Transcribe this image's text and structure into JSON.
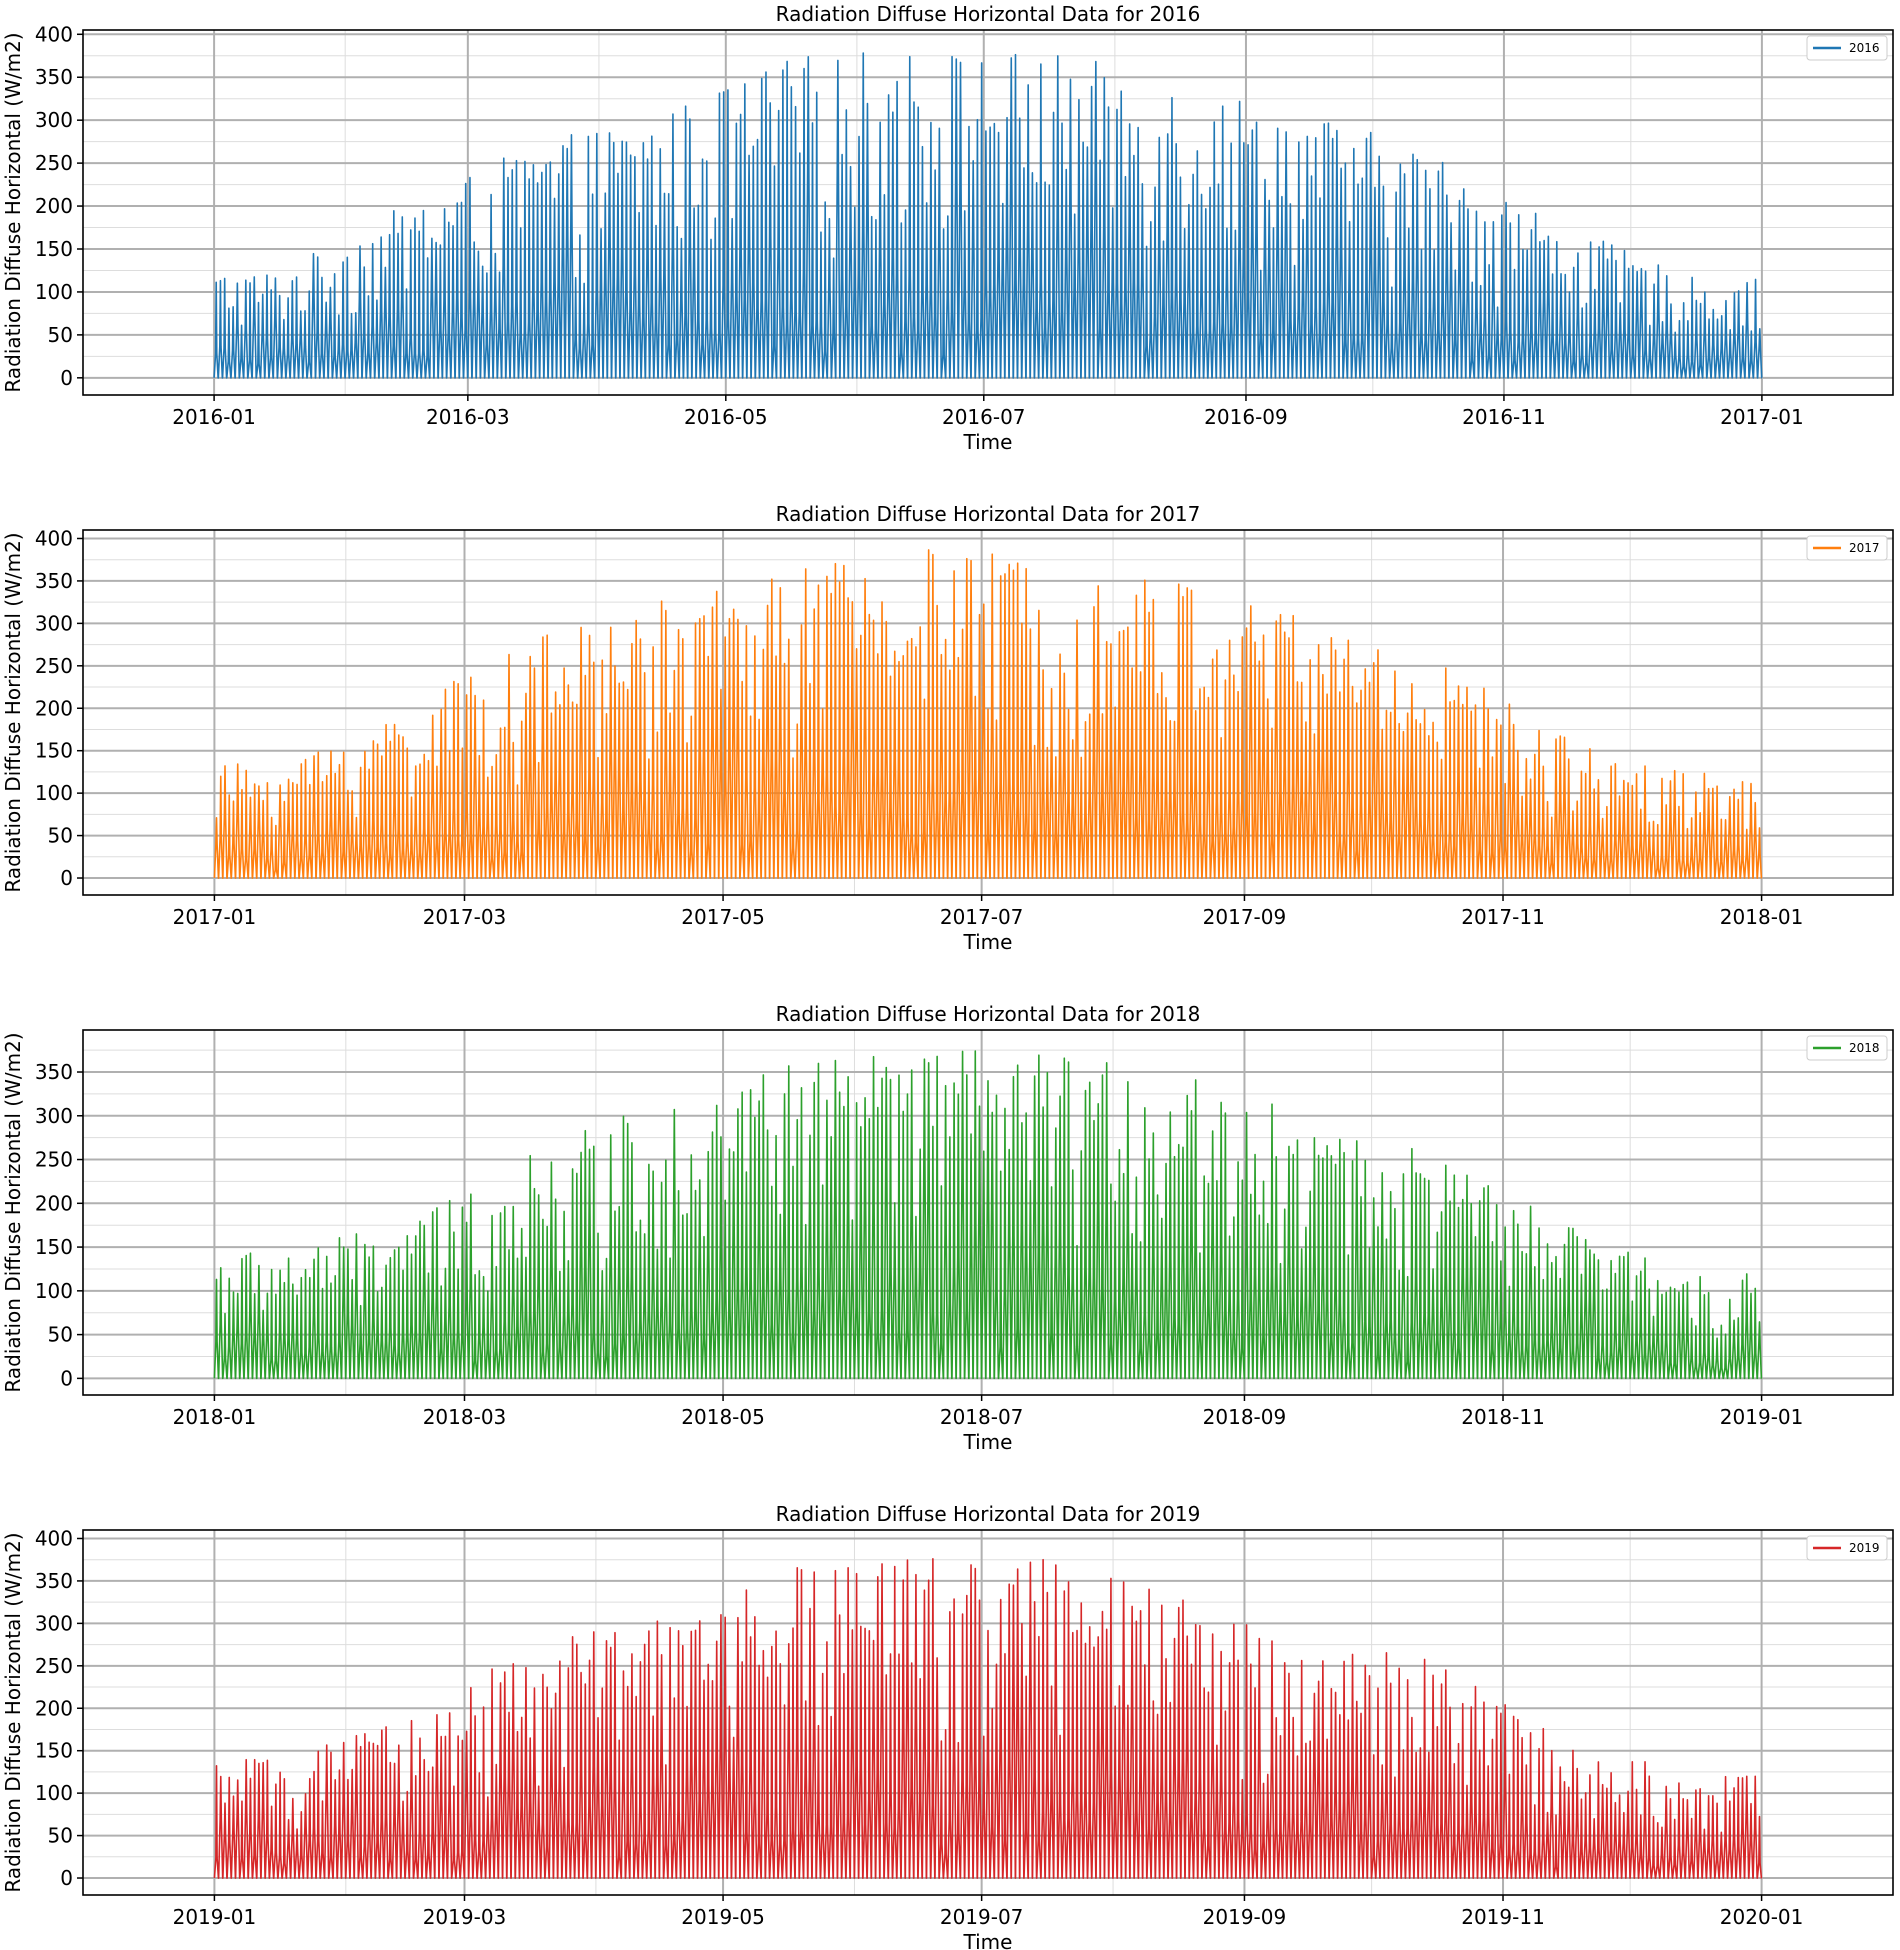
{
  "chart_data": [
    {
      "type": "line",
      "title": "Radiation Diffuse Horizontal Data for 2016",
      "xlabel": "Time",
      "ylabel": "Radiation Diffuse Horizontal (W/m2)",
      "legend_position": "top-right",
      "grid": true,
      "color": "#1f77b4",
      "xlim": [
        "2015-12-01",
        "2017-02-01"
      ],
      "ylim": [
        -20,
        405
      ],
      "x_tick_labels": [
        "2016-01",
        "2016-03",
        "2016-05",
        "2016-07",
        "2016-09",
        "2016-11",
        "2017-01"
      ],
      "x_tick_dates": [
        "2016-01-01",
        "2016-03-01",
        "2016-05-01",
        "2016-07-01",
        "2016-09-01",
        "2016-11-01",
        "2017-01-01"
      ],
      "y_ticks": [
        0,
        50,
        100,
        150,
        200,
        250,
        300,
        350,
        400
      ],
      "series": [
        {
          "name": "2016",
          "resolution": "hourly; daily peak values shown",
          "x_start": "2016-01-01",
          "x_end": "2016-12-31",
          "min_value": 0,
          "max_value": 385,
          "monthly_peak": [
            {
              "month": "2016-01",
              "peak": 125
            },
            {
              "month": "2016-02",
              "peak": 205
            },
            {
              "month": "2016-03",
              "peak": 272
            },
            {
              "month": "2016-04",
              "peak": 310
            },
            {
              "month": "2016-05",
              "peak": 375
            },
            {
              "month": "2016-06",
              "peak": 385
            },
            {
              "month": "2016-07",
              "peak": 380
            },
            {
              "month": "2016-08",
              "peak": 347
            },
            {
              "month": "2016-09",
              "peak": 310
            },
            {
              "month": "2016-10",
              "peak": 260
            },
            {
              "month": "2016-11",
              "peak": 175
            },
            {
              "month": "2016-12",
              "peak": 115
            }
          ]
        }
      ]
    },
    {
      "type": "line",
      "title": "Radiation Diffuse Horizontal Data for 2017",
      "xlabel": "Time",
      "ylabel": "Radiation Diffuse Horizontal (W/m2)",
      "legend_position": "top-right",
      "grid": true,
      "color": "#ff7f0e",
      "xlim": [
        "2016-12-01",
        "2018-02-01"
      ],
      "ylim": [
        -20,
        410
      ],
      "x_tick_labels": [
        "2017-01",
        "2017-03",
        "2017-05",
        "2017-07",
        "2017-09",
        "2017-11",
        "2018-01"
      ],
      "x_tick_dates": [
        "2017-01-01",
        "2017-03-01",
        "2017-05-01",
        "2017-07-01",
        "2017-09-01",
        "2017-11-01",
        "2018-01-01"
      ],
      "y_ticks": [
        0,
        50,
        100,
        150,
        200,
        250,
        300,
        350,
        400
      ],
      "series": [
        {
          "name": "2017",
          "resolution": "hourly; daily peak values shown",
          "x_start": "2017-01-01",
          "x_end": "2017-12-31",
          "min_value": 0,
          "max_value": 390,
          "monthly_peak": [
            {
              "month": "2017-01",
              "peak": 135
            },
            {
              "month": "2017-02",
              "peak": 205
            },
            {
              "month": "2017-03",
              "peak": 280
            },
            {
              "month": "2017-04",
              "peak": 328
            },
            {
              "month": "2017-05",
              "peak": 365
            },
            {
              "month": "2017-06",
              "peak": 390
            },
            {
              "month": "2017-07",
              "peak": 378
            },
            {
              "month": "2017-08",
              "peak": 352
            },
            {
              "month": "2017-09",
              "peak": 315
            },
            {
              "month": "2017-10",
              "peak": 260
            },
            {
              "month": "2017-11",
              "peak": 165
            },
            {
              "month": "2017-12",
              "peak": 125
            }
          ]
        }
      ]
    },
    {
      "type": "line",
      "title": "Radiation Diffuse Horizontal Data for 2018",
      "xlabel": "Time",
      "ylabel": "Radiation Diffuse Horizontal (W/m2)",
      "legend_position": "top-right",
      "grid": true,
      "color": "#2ca02c",
      "xlim": [
        "2017-12-01",
        "2019-02-01"
      ],
      "ylim": [
        -19,
        398
      ],
      "x_tick_labels": [
        "2018-01",
        "2018-03",
        "2018-05",
        "2018-07",
        "2018-09",
        "2018-11",
        "2019-01"
      ],
      "x_tick_dates": [
        "2018-01-01",
        "2018-03-01",
        "2018-05-01",
        "2018-07-01",
        "2018-09-01",
        "2018-11-01",
        "2019-01-01"
      ],
      "y_ticks": [
        0,
        50,
        100,
        150,
        200,
        250,
        300,
        350
      ],
      "series": [
        {
          "name": "2018",
          "resolution": "hourly; daily peak values shown",
          "x_start": "2018-01-01",
          "x_end": "2018-12-31",
          "min_value": 0,
          "max_value": 380,
          "monthly_peak": [
            {
              "month": "2018-01",
              "peak": 145
            },
            {
              "month": "2018-02",
              "peak": 180
            },
            {
              "month": "2018-03",
              "peak": 255
            },
            {
              "month": "2018-04",
              "peak": 322
            },
            {
              "month": "2018-05",
              "peak": 365
            },
            {
              "month": "2018-06",
              "peak": 380
            },
            {
              "month": "2018-07",
              "peak": 370
            },
            {
              "month": "2018-08",
              "peak": 352
            },
            {
              "month": "2018-09",
              "peak": 300
            },
            {
              "month": "2018-10",
              "peak": 255
            },
            {
              "month": "2018-11",
              "peak": 175
            },
            {
              "month": "2018-12",
              "peak": 120
            }
          ]
        }
      ]
    },
    {
      "type": "line",
      "title": "Radiation Diffuse Horizontal Data for 2019",
      "xlabel": "Time",
      "ylabel": "Radiation Diffuse Horizontal (W/m2)",
      "legend_position": "top-right",
      "grid": true,
      "color": "#d62728",
      "xlim": [
        "2018-12-01",
        "2020-02-01"
      ],
      "ylim": [
        -20,
        410
      ],
      "x_tick_labels": [
        "2019-01",
        "2019-03",
        "2019-05",
        "2019-07",
        "2019-09",
        "2019-11",
        "2020-01"
      ],
      "x_tick_dates": [
        "2019-01-01",
        "2019-03-01",
        "2019-05-01",
        "2019-07-01",
        "2019-09-01",
        "2019-11-01",
        "2020-01-01"
      ],
      "y_ticks": [
        0,
        50,
        100,
        150,
        200,
        250,
        300,
        350,
        400
      ],
      "series": [
        {
          "name": "2019",
          "resolution": "hourly; daily peak values shown",
          "x_start": "2019-01-01",
          "x_end": "2019-12-31",
          "min_value": 0,
          "max_value": 388,
          "monthly_peak": [
            {
              "month": "2019-01",
              "peak": 140
            },
            {
              "month": "2019-02",
              "peak": 190
            },
            {
              "month": "2019-03",
              "peak": 277
            },
            {
              "month": "2019-04",
              "peak": 305
            },
            {
              "month": "2019-05",
              "peak": 365
            },
            {
              "month": "2019-06",
              "peak": 388
            },
            {
              "month": "2019-07",
              "peak": 383
            },
            {
              "month": "2019-08",
              "peak": 330
            },
            {
              "month": "2019-09",
              "peak": 280
            },
            {
              "month": "2019-10",
              "peak": 258
            },
            {
              "month": "2019-11",
              "peak": 158
            },
            {
              "month": "2019-12",
              "peak": 123
            }
          ]
        }
      ]
    }
  ]
}
